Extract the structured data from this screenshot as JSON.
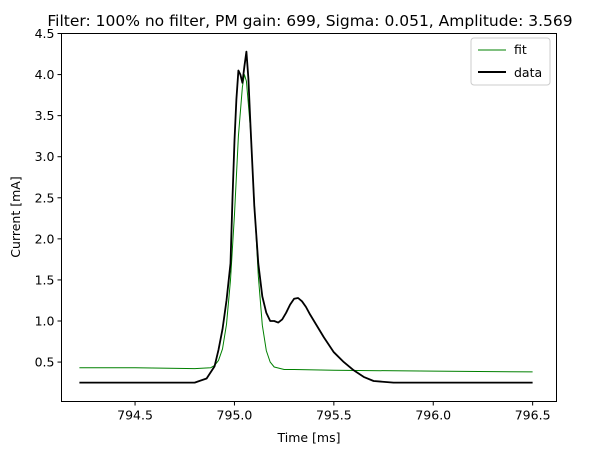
{
  "chart_data": {
    "type": "line",
    "title": "Filter: 100% no filter, PM gain: 699, Sigma: 0.051, Amplitude: 3.569",
    "xlabel": "Time [ms]",
    "ylabel": "Current [mA]",
    "xlim": [
      794.13,
      796.62
    ],
    "ylim": [
      0.02,
      4.5
    ],
    "x_ticks": [
      794.5,
      795.0,
      795.5,
      796.0,
      796.5
    ],
    "x_tick_labels": [
      "794.5",
      "795.0",
      "795.5",
      "796.0",
      "796.5"
    ],
    "y_ticks": [
      0.5,
      1.0,
      1.5,
      2.0,
      2.5,
      3.0,
      3.5,
      4.0,
      4.5
    ],
    "y_tick_labels": [
      "0.5",
      "1.0",
      "1.5",
      "2.0",
      "2.5",
      "3.0",
      "3.5",
      "4.0",
      "4.5"
    ],
    "grid": false,
    "legend_position": "top-right",
    "series": [
      {
        "name": "fit",
        "color": "#008000",
        "stroke": "thin",
        "x": [
          794.22,
          794.5,
          794.8,
          794.88,
          794.9,
          794.92,
          794.94,
          794.96,
          794.98,
          795.0,
          795.02,
          795.04,
          795.05,
          795.06,
          795.08,
          795.1,
          795.12,
          795.14,
          795.16,
          795.18,
          795.2,
          795.25,
          795.3,
          795.5,
          796.0,
          796.5
        ],
        "y": [
          0.43,
          0.43,
          0.42,
          0.43,
          0.46,
          0.52,
          0.66,
          0.96,
          1.5,
          2.3,
          3.25,
          3.85,
          4.0,
          3.92,
          3.35,
          2.45,
          1.55,
          0.95,
          0.64,
          0.5,
          0.44,
          0.41,
          0.41,
          0.4,
          0.39,
          0.38
        ]
      },
      {
        "name": "data",
        "color": "#000000",
        "stroke": "thick",
        "x": [
          794.22,
          794.5,
          794.8,
          794.86,
          794.9,
          794.92,
          794.94,
          794.96,
          794.98,
          794.99,
          795.0,
          795.01,
          795.02,
          795.03,
          795.04,
          795.05,
          795.06,
          795.07,
          795.08,
          795.1,
          795.12,
          795.14,
          795.16,
          795.18,
          795.2,
          795.22,
          795.24,
          795.26,
          795.28,
          795.3,
          795.32,
          795.34,
          795.36,
          795.38,
          795.4,
          795.45,
          795.5,
          795.55,
          795.6,
          795.65,
          795.7,
          795.8,
          796.0,
          796.2,
          796.5
        ],
        "y": [
          0.25,
          0.25,
          0.25,
          0.3,
          0.45,
          0.65,
          0.9,
          1.25,
          1.7,
          2.5,
          3.2,
          3.7,
          4.05,
          4.0,
          3.9,
          4.1,
          4.28,
          3.95,
          3.4,
          2.4,
          1.7,
          1.3,
          1.1,
          1.0,
          1.0,
          0.98,
          1.02,
          1.1,
          1.2,
          1.27,
          1.28,
          1.24,
          1.17,
          1.08,
          1.0,
          0.8,
          0.62,
          0.5,
          0.4,
          0.32,
          0.27,
          0.25,
          0.25,
          0.25,
          0.25
        ]
      }
    ]
  }
}
